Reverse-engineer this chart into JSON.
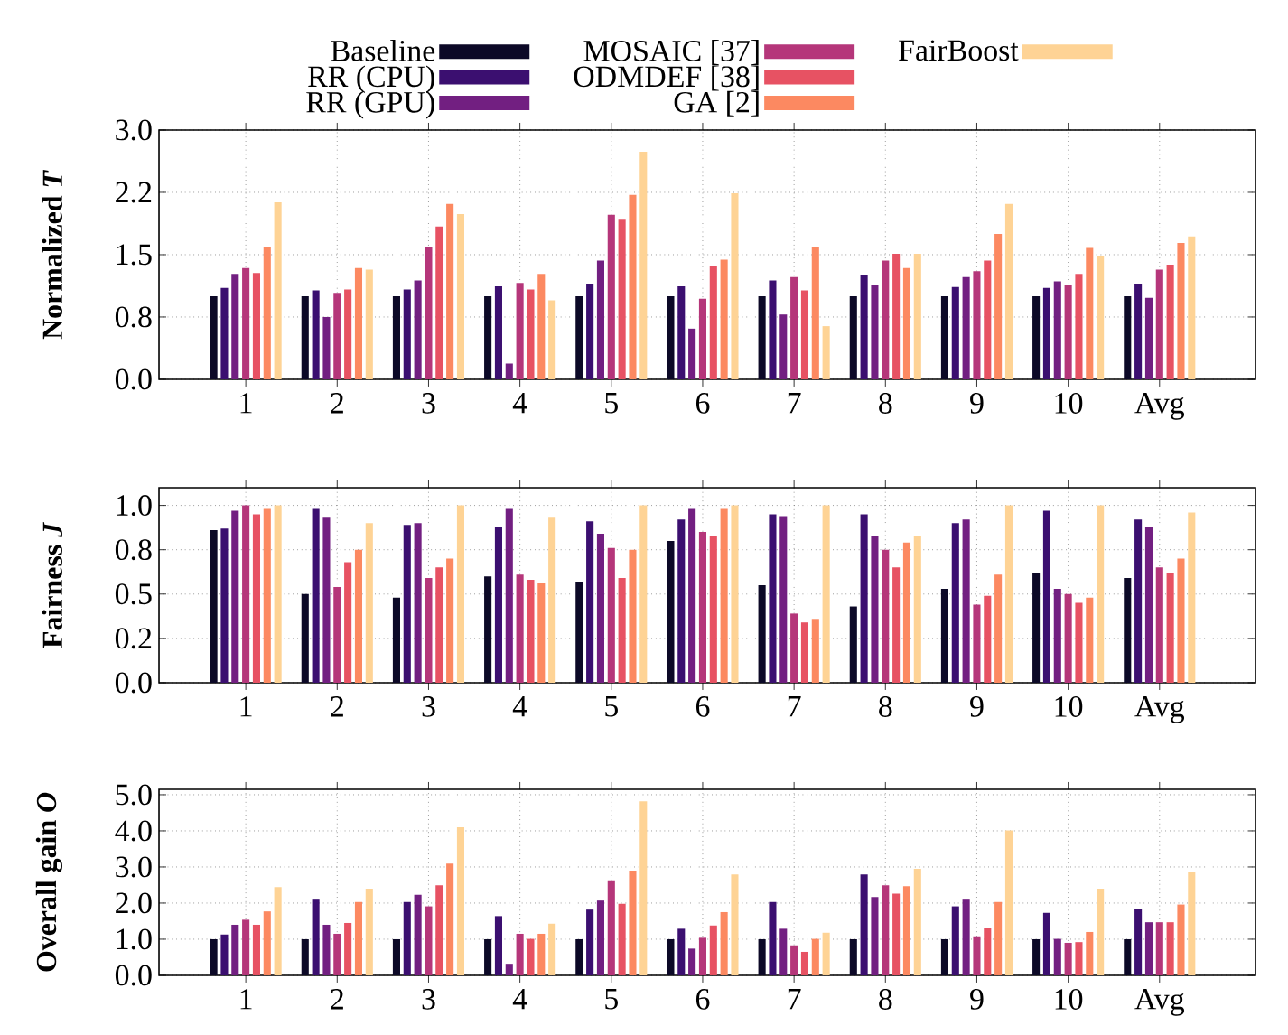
{
  "chart_data": [
    {
      "type": "bar",
      "ylabel": "Normalized *T*",
      "legend": "top",
      "grid": true,
      "categories": [
        "1",
        "2",
        "3",
        "4",
        "5",
        "6",
        "7",
        "8",
        "9",
        "10",
        "Avg"
      ],
      "ylim": [
        0,
        3.0
      ],
      "yticks": [
        {
          "value": 0,
          "label": "0.0"
        },
        {
          "value": 0.75,
          "label": "0.8"
        },
        {
          "value": 1.5,
          "label": "1.5"
        },
        {
          "value": 2.25,
          "label": "2.2"
        },
        {
          "value": 3.0,
          "label": "3.0"
        }
      ],
      "series": [
        {
          "name": "Baseline",
          "color": "#0c0927",
          "values": [
            1.0,
            1.0,
            1.0,
            1.0,
            1.0,
            1.0,
            1.0,
            1.0,
            1.0,
            1.0,
            1.0
          ]
        },
        {
          "name": "RR (CPU)",
          "color": "#3b0f70",
          "values": [
            1.1,
            1.07,
            1.08,
            1.12,
            1.15,
            1.12,
            1.19,
            1.26,
            1.11,
            1.1,
            1.14
          ]
        },
        {
          "name": "RR (GPU)",
          "color": "#721f81",
          "values": [
            1.27,
            0.75,
            1.19,
            0.19,
            1.43,
            0.61,
            0.78,
            1.13,
            1.23,
            1.18,
            0.98
          ]
        },
        {
          "name": "MOSAIC [37]",
          "color": "#b5367a",
          "values": [
            1.34,
            1.04,
            1.59,
            1.16,
            1.98,
            0.97,
            1.23,
            1.43,
            1.3,
            1.13,
            1.32
          ]
        },
        {
          "name": "ODMDEF [38]",
          "color": "#e75263",
          "values": [
            1.28,
            1.08,
            1.84,
            1.08,
            1.92,
            1.36,
            1.07,
            1.51,
            1.43,
            1.27,
            1.38
          ]
        },
        {
          "name": "GA [2]",
          "color": "#fc8961",
          "values": [
            1.59,
            1.34,
            2.11,
            1.27,
            2.22,
            1.44,
            1.59,
            1.34,
            1.75,
            1.58,
            1.64
          ]
        },
        {
          "name": "FairBoost",
          "color": "#fed395",
          "values": [
            2.13,
            1.32,
            1.99,
            0.95,
            2.74,
            2.24,
            0.64,
            1.51,
            2.11,
            1.49,
            1.72
          ]
        }
      ]
    },
    {
      "type": "bar",
      "ylabel": "Fairness *J*",
      "grid": true,
      "categories": [
        "1",
        "2",
        "3",
        "4",
        "5",
        "6",
        "7",
        "8",
        "9",
        "10",
        "Avg"
      ],
      "ylim": [
        0,
        1.1
      ],
      "yticks": [
        {
          "value": 0,
          "label": "0.0"
        },
        {
          "value": 0.25,
          "label": "0.2"
        },
        {
          "value": 0.5,
          "label": "0.5"
        },
        {
          "value": 0.75,
          "label": "0.8"
        },
        {
          "value": 1.0,
          "label": "1.0"
        }
      ],
      "series": [
        {
          "color": "#0c0927",
          "values": [
            0.86,
            0.5,
            0.48,
            0.6,
            0.57,
            0.8,
            0.55,
            0.43,
            0.53,
            0.62,
            0.59
          ]
        },
        {
          "color": "#3b0f70",
          "values": [
            0.87,
            0.98,
            0.89,
            0.88,
            0.91,
            0.92,
            0.95,
            0.95,
            0.9,
            0.97,
            0.92
          ]
        },
        {
          "color": "#721f81",
          "values": [
            0.97,
            0.93,
            0.9,
            0.98,
            0.84,
            0.98,
            0.94,
            0.83,
            0.92,
            0.53,
            0.88
          ]
        },
        {
          "color": "#b5367a",
          "values": [
            1.0,
            0.54,
            0.59,
            0.61,
            0.76,
            0.85,
            0.39,
            0.75,
            0.44,
            0.5,
            0.65
          ]
        },
        {
          "color": "#e75263",
          "values": [
            0.95,
            0.68,
            0.65,
            0.58,
            0.59,
            0.83,
            0.34,
            0.65,
            0.49,
            0.45,
            0.62
          ]
        },
        {
          "color": "#fc8961",
          "values": [
            0.98,
            0.75,
            0.7,
            0.56,
            0.75,
            0.98,
            0.36,
            0.79,
            0.61,
            0.48,
            0.7
          ]
        },
        {
          "color": "#fed395",
          "values": [
            1.0,
            0.9,
            1.0,
            0.93,
            1.0,
            1.0,
            1.0,
            0.83,
            1.0,
            1.0,
            0.96
          ]
        }
      ]
    },
    {
      "type": "bar",
      "ylabel": "Overall gain *O*",
      "grid": true,
      "categories": [
        "1",
        "2",
        "3",
        "4",
        "5",
        "6",
        "7",
        "8",
        "9",
        "10",
        "Avg"
      ],
      "ylim": [
        0,
        5.15
      ],
      "yticks": [
        {
          "value": 0,
          "label": "0.0"
        },
        {
          "value": 1,
          "label": "1.0"
        },
        {
          "value": 2,
          "label": "2.0"
        },
        {
          "value": 3,
          "label": "3.0"
        },
        {
          "value": 4,
          "label": "4.0"
        },
        {
          "value": 5,
          "label": "5.0"
        }
      ],
      "series": [
        {
          "color": "#0c0927",
          "values": [
            1.0,
            1.0,
            1.0,
            1.0,
            1.0,
            1.0,
            1.0,
            1.0,
            1.0,
            1.0,
            1.0
          ]
        },
        {
          "color": "#3b0f70",
          "values": [
            1.13,
            2.12,
            2.03,
            1.64,
            1.82,
            1.29,
            2.03,
            2.79,
            1.91,
            1.73,
            1.84
          ]
        },
        {
          "color": "#721f81",
          "values": [
            1.4,
            1.4,
            2.23,
            0.32,
            2.07,
            0.74,
            1.29,
            2.17,
            2.12,
            1.01,
            1.47
          ]
        },
        {
          "color": "#b5367a",
          "values": [
            1.54,
            1.15,
            1.91,
            1.15,
            2.63,
            1.04,
            0.83,
            2.49,
            1.08,
            0.9,
            1.47
          ]
        },
        {
          "color": "#e75263",
          "values": [
            1.4,
            1.45,
            2.49,
            1.01,
            1.98,
            1.38,
            0.65,
            2.26,
            1.31,
            0.92,
            1.47
          ]
        },
        {
          "color": "#fc8961",
          "values": [
            1.77,
            2.03,
            3.09,
            1.15,
            2.9,
            1.75,
            1.01,
            2.47,
            2.03,
            1.2,
            1.96
          ]
        },
        {
          "color": "#fed395",
          "values": [
            2.44,
            2.4,
            4.1,
            1.43,
            4.82,
            2.79,
            1.18,
            2.95,
            4.01,
            2.4,
            2.86
          ]
        }
      ]
    }
  ]
}
